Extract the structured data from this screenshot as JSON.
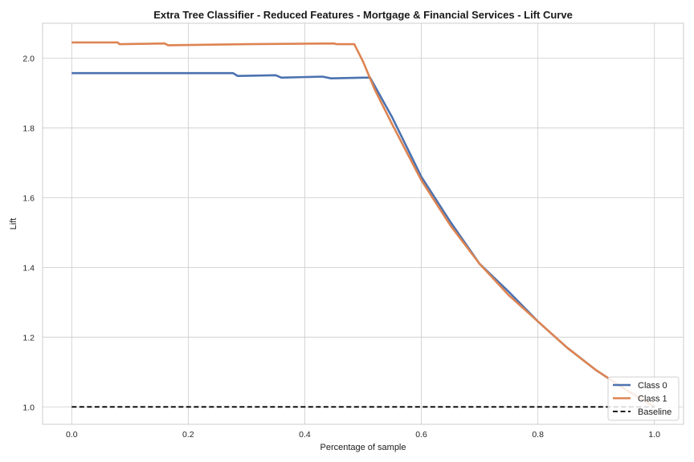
{
  "chart_data": {
    "type": "line",
    "title": "Extra Tree Classifier - Reduced Features - Mortgage & Financial Services - Lift Curve",
    "xlabel": "Percentage of sample",
    "ylabel": "Lift",
    "xlim": [
      -0.05,
      1.05
    ],
    "ylim": [
      0.95,
      2.1
    ],
    "xticks": [
      0.0,
      0.2,
      0.4,
      0.6,
      0.8,
      1.0
    ],
    "xtick_labels": [
      "0.0",
      "0.2",
      "0.4",
      "0.6",
      "0.8",
      "1.0"
    ],
    "yticks": [
      1.0,
      1.2,
      1.4,
      1.6,
      1.8,
      2.0
    ],
    "ytick_labels": [
      "1.0",
      "1.2",
      "1.4",
      "1.6",
      "1.8",
      "2.0"
    ],
    "grid": true,
    "legend_position": "lower-right",
    "series": [
      {
        "name": "Class 0",
        "color": "#4c72b0",
        "style": "solid",
        "x": [
          0.0,
          0.1,
          0.2,
          0.277,
          0.285,
          0.35,
          0.36,
          0.43,
          0.445,
          0.5,
          0.512,
          0.53,
          0.55,
          0.6,
          0.65,
          0.7,
          0.75,
          0.8,
          0.85,
          0.9,
          0.95,
          1.0
        ],
        "y": [
          1.957,
          1.957,
          1.957,
          1.957,
          1.949,
          1.951,
          1.944,
          1.947,
          1.942,
          1.944,
          1.944,
          1.89,
          1.83,
          1.66,
          1.53,
          1.41,
          1.33,
          1.245,
          1.17,
          1.105,
          1.05,
          1.0
        ]
      },
      {
        "name": "Class 1",
        "color": "#dd8452",
        "style": "solid",
        "x": [
          0.0,
          0.079,
          0.082,
          0.16,
          0.165,
          0.3,
          0.45,
          0.455,
          0.485,
          0.5,
          0.52,
          0.55,
          0.6,
          0.65,
          0.7,
          0.75,
          0.8,
          0.85,
          0.9,
          0.95,
          1.0
        ],
        "y": [
          2.045,
          2.045,
          2.04,
          2.042,
          2.037,
          2.04,
          2.042,
          2.04,
          2.04,
          1.99,
          1.91,
          1.81,
          1.65,
          1.52,
          1.41,
          1.32,
          1.245,
          1.17,
          1.105,
          1.05,
          1.0
        ]
      },
      {
        "name": "Baseline",
        "color": "#000000",
        "style": "dashed",
        "x": [
          0.0,
          1.0
        ],
        "y": [
          1.0,
          1.0
        ]
      }
    ]
  }
}
